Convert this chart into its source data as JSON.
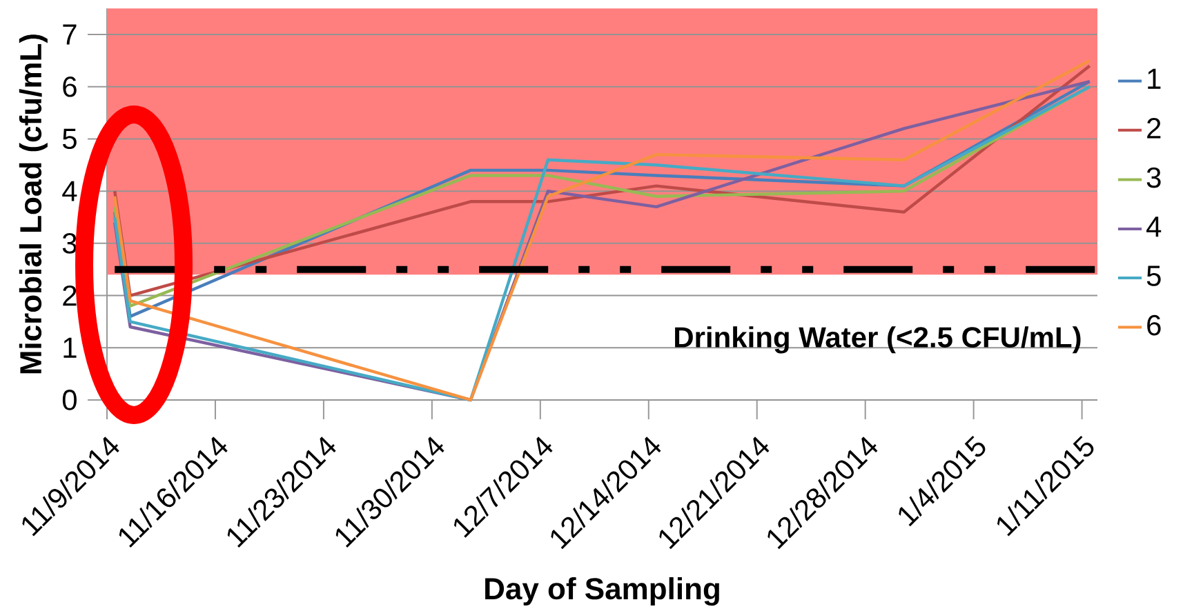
{
  "chart_data": {
    "type": "line",
    "xlabel": "Day of Sampling",
    "ylabel": "Microbial Load (cfu/mL)",
    "x": [
      "2014-11-09T12:00",
      "2014-11-10T12:00",
      "2014-12-02T12:00",
      "2014-12-07T12:00",
      "2014-12-14T12:00",
      "2014-12-30T12:00",
      "2015-01-11T12:00"
    ],
    "series": [
      {
        "name": "1",
        "color": "#4A7EBB",
        "values": [
          3.6,
          1.6,
          4.4,
          4.4,
          4.3,
          4.1,
          6.1
        ]
      },
      {
        "name": "2",
        "color": "#BE4B48",
        "values": [
          4.0,
          2.0,
          3.8,
          3.8,
          4.1,
          3.6,
          6.4
        ]
      },
      {
        "name": "3",
        "color": "#98B954",
        "values": [
          3.7,
          1.8,
          4.3,
          4.3,
          3.9,
          4.0,
          6.0
        ]
      },
      {
        "name": "4",
        "color": "#7D60A0",
        "values": [
          3.4,
          1.4,
          0,
          4.0,
          3.7,
          5.2,
          6.1
        ]
      },
      {
        "name": "5",
        "color": "#46AAC5",
        "values": [
          3.5,
          1.5,
          0,
          4.6,
          4.5,
          4.1,
          6.0
        ]
      },
      {
        "name": "6",
        "color": "#F69240",
        "values": [
          3.9,
          1.9,
          0,
          3.9,
          4.7,
          4.6,
          6.5
        ]
      }
    ],
    "xlim": [
      "2014-11-09",
      "2015-01-12"
    ],
    "xticks": [
      {
        "value": "2014-11-09",
        "label": "11/9/2014"
      },
      {
        "value": "2014-11-16",
        "label": "11/16/2014"
      },
      {
        "value": "2014-11-23",
        "label": "11/23/2014"
      },
      {
        "value": "2014-11-30",
        "label": "11/30/2014"
      },
      {
        "value": "2014-12-07",
        "label": "12/7/2014"
      },
      {
        "value": "2014-12-14",
        "label": "12/14/2014"
      },
      {
        "value": "2014-12-21",
        "label": "12/21/2014"
      },
      {
        "value": "2014-12-28",
        "label": "12/28/2014"
      },
      {
        "value": "2015-01-04",
        "label": "1/4/2015"
      },
      {
        "value": "2015-01-11",
        "label": "1/11/2015"
      }
    ],
    "ylim": [
      0,
      7.5
    ],
    "yticks": [
      0,
      1,
      2,
      3,
      4,
      5,
      6,
      7
    ],
    "ref_lines": [
      {
        "axis": "y",
        "value": 2.5,
        "label": "Drinking Water (<2.5 CFU/mL)",
        "color": "#000000",
        "line_style": "dashed"
      }
    ],
    "bands": [
      {
        "axis": "y",
        "from": 2.4,
        "to": 7.5,
        "color": "#FF7F7F"
      }
    ],
    "grid": "y",
    "legend": "right"
  }
}
